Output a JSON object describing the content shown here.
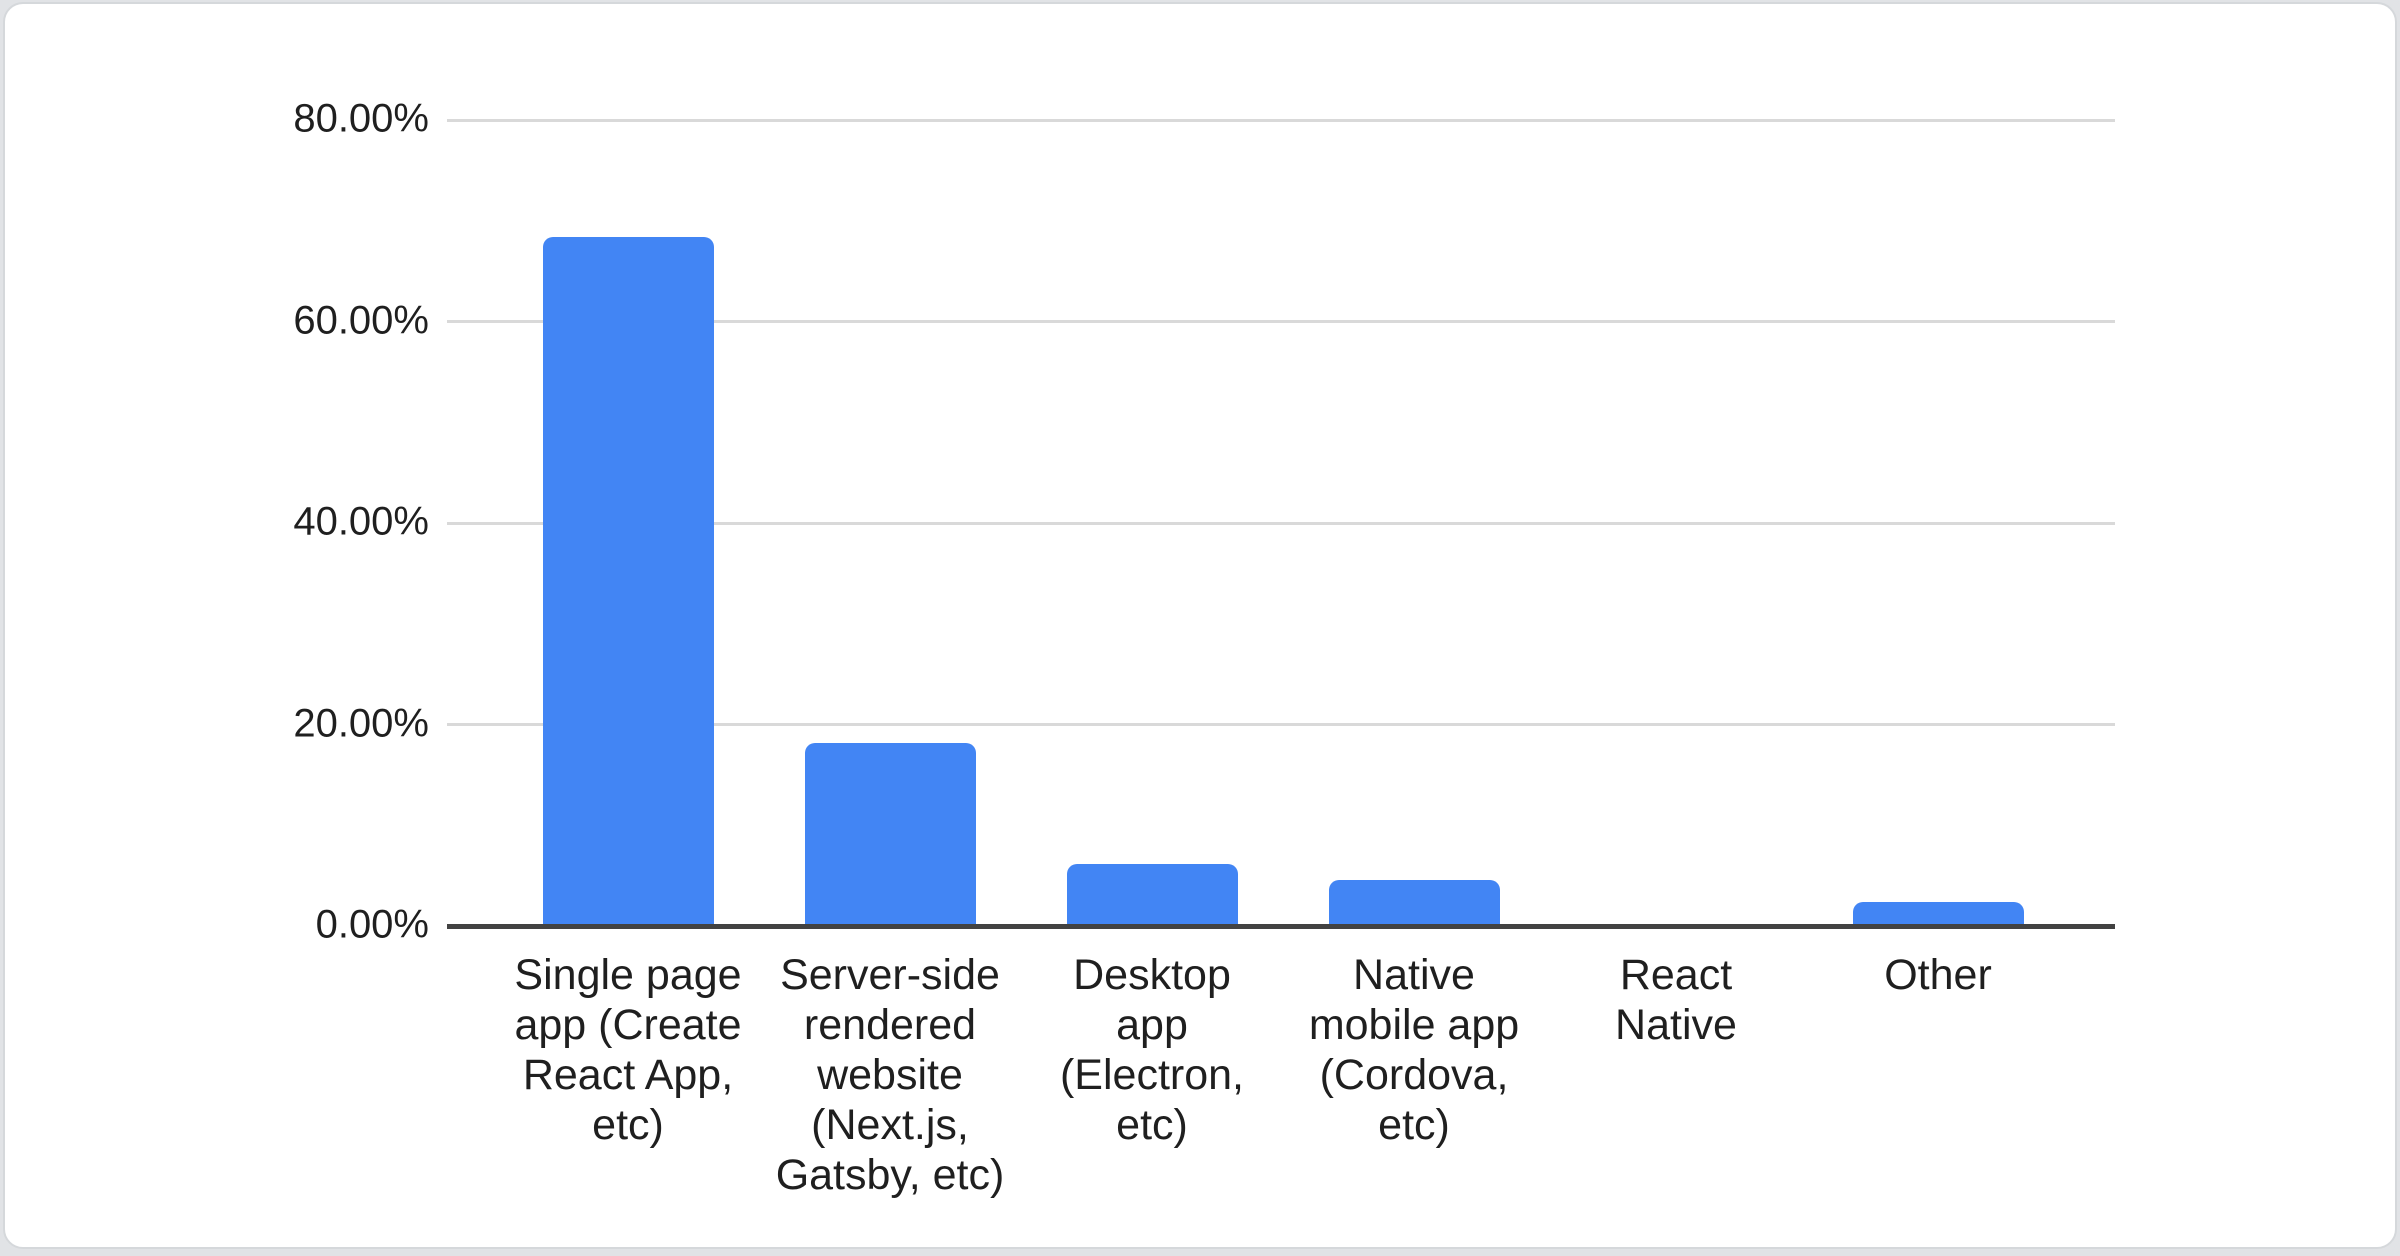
{
  "page": {
    "background_color": "#e1e3e6"
  },
  "card": {
    "background_color": "#ffffff",
    "border_color": "#d5d8db"
  },
  "chart_data": {
    "type": "bar",
    "title": "",
    "xlabel": "",
    "ylabel": "",
    "categories": [
      "Single page app (Create React App, etc)",
      "Server-side rendered website (Next.js, Gatsby, etc)",
      "Desktop app (Electron, etc)",
      "Native mobile app (Cordova, etc)",
      "React Native",
      "Other"
    ],
    "category_display_lines": [
      "Single page\napp (Create\nReact App,\netc)",
      "Server-side\nrendered\nwebsite\n(Next.js,\nGatsby, etc)",
      "Desktop\napp\n(Electron,\netc)",
      "Native\nmobile app\n(Cordova,\netc)",
      "React\nNative",
      "Other"
    ],
    "values": [
      68.4,
      18.2,
      6.2,
      4.6,
      0,
      2.4
    ],
    "unit": "%",
    "ylim": [
      0,
      80
    ],
    "yticks": [
      80,
      60,
      40,
      20,
      0
    ],
    "ytick_labels": [
      "80.00%",
      "60.00%",
      "40.00%",
      "20.00%",
      "0.00%"
    ],
    "grid": true,
    "legend": false,
    "bar_color": "#4285f4",
    "gridline_color": "#d9d9d9",
    "axis_line_color": "#424242",
    "tick_label_color": "#1f1f1f"
  }
}
